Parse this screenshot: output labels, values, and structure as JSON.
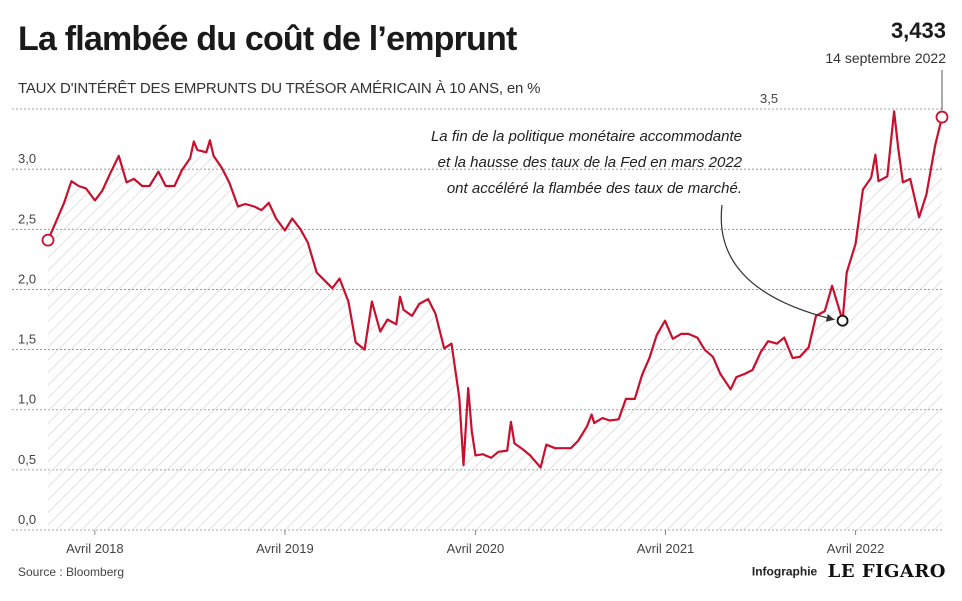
{
  "title": "La flambée du coût de l’emprunt",
  "subtitle": "TAUX D'INTÉRÊT DES EMPRUNTS DU TRÉSOR AMÉRICAIN À 10 ANS, en %",
  "last_point": {
    "value_label": "3,433",
    "date_label": "14 septembre 2022"
  },
  "annotation": [
    "La fin de la politique monétaire accommodante",
    "et la hausse des taux de la Fed en mars 2022",
    "ont accéléré la flambée des taux de marché."
  ],
  "source": "Source : Bloomberg",
  "credit": {
    "label": "Infographie",
    "logo": "LE FIGARO"
  },
  "colors": {
    "line": "#c8102e",
    "hatch": "#d6d6d6",
    "grid": "#888888"
  },
  "chart_data": {
    "type": "line",
    "xlabel": "",
    "ylabel": "",
    "ylim": [
      0,
      3.6
    ],
    "y_ticks": [
      {
        "value": 0.0,
        "label": "0,0"
      },
      {
        "value": 0.5,
        "label": "0,5"
      },
      {
        "value": 1.0,
        "label": "1,0"
      },
      {
        "value": 1.5,
        "label": "1,5"
      },
      {
        "value": 2.0,
        "label": "2,0"
      },
      {
        "value": 2.5,
        "label": "2,5"
      },
      {
        "value": 3.0,
        "label": "3,0"
      },
      {
        "value": 3.5,
        "label": "3,5"
      }
    ],
    "x_range": [
      "2018-01-01",
      "2022-09-14"
    ],
    "x_ticks": [
      {
        "date": "2018-04-01",
        "label": "Avril 2018"
      },
      {
        "date": "2019-04-01",
        "label": "Avril 2019"
      },
      {
        "date": "2020-04-01",
        "label": "Avril 2020"
      },
      {
        "date": "2021-04-01",
        "label": "Avril 2021"
      },
      {
        "date": "2022-04-01",
        "label": "Avril 2022"
      }
    ],
    "grid": true,
    "fill": "hatched",
    "series": [
      {
        "points": [
          [
            "2018-01-01",
            2.41
          ],
          [
            "2018-01-15",
            2.55
          ],
          [
            "2018-02-01",
            2.72
          ],
          [
            "2018-02-15",
            2.9
          ],
          [
            "2018-03-01",
            2.86
          ],
          [
            "2018-03-15",
            2.84
          ],
          [
            "2018-04-01",
            2.74
          ],
          [
            "2018-04-15",
            2.82
          ],
          [
            "2018-05-01",
            2.97
          ],
          [
            "2018-05-17",
            3.11
          ],
          [
            "2018-06-01",
            2.89
          ],
          [
            "2018-06-15",
            2.92
          ],
          [
            "2018-07-01",
            2.86
          ],
          [
            "2018-07-15",
            2.86
          ],
          [
            "2018-08-01",
            2.98
          ],
          [
            "2018-08-15",
            2.86
          ],
          [
            "2018-09-01",
            2.86
          ],
          [
            "2018-09-15",
            2.99
          ],
          [
            "2018-10-01",
            3.09
          ],
          [
            "2018-10-08",
            3.23
          ],
          [
            "2018-10-15",
            3.16
          ],
          [
            "2018-11-01",
            3.14
          ],
          [
            "2018-11-08",
            3.24
          ],
          [
            "2018-11-15",
            3.11
          ],
          [
            "2018-12-01",
            3.01
          ],
          [
            "2018-12-15",
            2.89
          ],
          [
            "2019-01-01",
            2.69
          ],
          [
            "2019-01-15",
            2.71
          ],
          [
            "2019-02-01",
            2.69
          ],
          [
            "2019-02-15",
            2.66
          ],
          [
            "2019-03-01",
            2.72
          ],
          [
            "2019-03-15",
            2.59
          ],
          [
            "2019-04-01",
            2.49
          ],
          [
            "2019-04-15",
            2.59
          ],
          [
            "2019-05-01",
            2.5
          ],
          [
            "2019-05-15",
            2.39
          ],
          [
            "2019-06-01",
            2.14
          ],
          [
            "2019-06-15",
            2.08
          ],
          [
            "2019-07-01",
            2.01
          ],
          [
            "2019-07-15",
            2.09
          ],
          [
            "2019-08-01",
            1.9
          ],
          [
            "2019-08-15",
            1.56
          ],
          [
            "2019-09-01",
            1.5
          ],
          [
            "2019-09-15",
            1.9
          ],
          [
            "2019-10-01",
            1.65
          ],
          [
            "2019-10-15",
            1.75
          ],
          [
            "2019-11-01",
            1.71
          ],
          [
            "2019-11-08",
            1.94
          ],
          [
            "2019-11-15",
            1.83
          ],
          [
            "2019-12-01",
            1.78
          ],
          [
            "2019-12-15",
            1.88
          ],
          [
            "2020-01-01",
            1.92
          ],
          [
            "2020-01-15",
            1.8
          ],
          [
            "2020-02-01",
            1.51
          ],
          [
            "2020-02-15",
            1.55
          ],
          [
            "2020-03-01",
            1.1
          ],
          [
            "2020-03-09",
            0.54
          ],
          [
            "2020-03-18",
            1.18
          ],
          [
            "2020-03-25",
            0.82
          ],
          [
            "2020-04-01",
            0.62
          ],
          [
            "2020-04-15",
            0.63
          ],
          [
            "2020-05-01",
            0.6
          ],
          [
            "2020-05-15",
            0.65
          ],
          [
            "2020-06-01",
            0.66
          ],
          [
            "2020-06-08",
            0.9
          ],
          [
            "2020-06-15",
            0.72
          ],
          [
            "2020-07-01",
            0.67
          ],
          [
            "2020-07-15",
            0.62
          ],
          [
            "2020-08-04",
            0.52
          ],
          [
            "2020-08-15",
            0.71
          ],
          [
            "2020-09-01",
            0.68
          ],
          [
            "2020-09-15",
            0.68
          ],
          [
            "2020-10-01",
            0.68
          ],
          [
            "2020-10-15",
            0.74
          ],
          [
            "2020-11-01",
            0.86
          ],
          [
            "2020-11-10",
            0.96
          ],
          [
            "2020-11-15",
            0.89
          ],
          [
            "2020-12-01",
            0.93
          ],
          [
            "2020-12-15",
            0.91
          ],
          [
            "2021-01-01",
            0.92
          ],
          [
            "2021-01-15",
            1.09
          ],
          [
            "2021-02-01",
            1.09
          ],
          [
            "2021-02-15",
            1.29
          ],
          [
            "2021-03-01",
            1.43
          ],
          [
            "2021-03-15",
            1.62
          ],
          [
            "2021-03-31",
            1.74
          ],
          [
            "2021-04-15",
            1.59
          ],
          [
            "2021-05-01",
            1.63
          ],
          [
            "2021-05-15",
            1.63
          ],
          [
            "2021-06-01",
            1.6
          ],
          [
            "2021-06-15",
            1.5
          ],
          [
            "2021-07-01",
            1.44
          ],
          [
            "2021-07-15",
            1.3
          ],
          [
            "2021-08-04",
            1.17
          ],
          [
            "2021-08-15",
            1.27
          ],
          [
            "2021-09-01",
            1.3
          ],
          [
            "2021-09-15",
            1.33
          ],
          [
            "2021-10-01",
            1.48
          ],
          [
            "2021-10-15",
            1.57
          ],
          [
            "2021-11-01",
            1.55
          ],
          [
            "2021-11-15",
            1.6
          ],
          [
            "2021-12-01",
            1.43
          ],
          [
            "2021-12-15",
            1.44
          ],
          [
            "2022-01-01",
            1.52
          ],
          [
            "2022-01-15",
            1.78
          ],
          [
            "2022-02-01",
            1.82
          ],
          [
            "2022-02-15",
            2.03
          ],
          [
            "2022-03-01",
            1.83
          ],
          [
            "2022-03-07",
            1.74
          ],
          [
            "2022-03-15",
            2.14
          ],
          [
            "2022-04-01",
            2.38
          ],
          [
            "2022-04-15",
            2.83
          ],
          [
            "2022-05-01",
            2.93
          ],
          [
            "2022-05-09",
            3.12
          ],
          [
            "2022-05-15",
            2.9
          ],
          [
            "2022-06-01",
            2.94
          ],
          [
            "2022-06-14",
            3.48
          ],
          [
            "2022-06-22",
            3.17
          ],
          [
            "2022-07-01",
            2.89
          ],
          [
            "2022-07-15",
            2.92
          ],
          [
            "2022-08-01",
            2.6
          ],
          [
            "2022-08-15",
            2.79
          ],
          [
            "2022-09-01",
            3.2
          ],
          [
            "2022-09-14",
            3.433
          ]
        ]
      }
    ],
    "markers": [
      {
        "date": "2018-01-01",
        "value": 2.41,
        "style": "red"
      },
      {
        "date": "2022-03-07",
        "value": 1.74,
        "style": "black"
      },
      {
        "date": "2022-09-14",
        "value": 3.433,
        "style": "red"
      }
    ]
  }
}
